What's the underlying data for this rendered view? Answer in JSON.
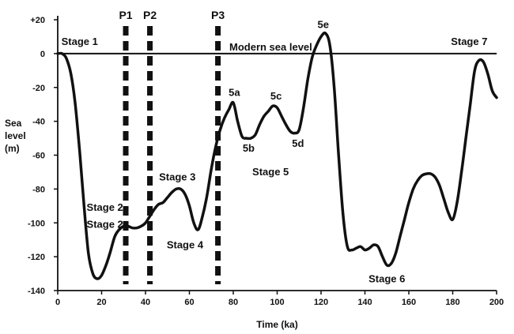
{
  "chart_data": {
    "type": "line",
    "xlabel": "Time (ka)",
    "ylabel_lines": [
      "Sea",
      "level",
      "(m)"
    ],
    "xlim": [
      0,
      200
    ],
    "ylim": [
      -140,
      20
    ],
    "x_ticks": [
      0,
      20,
      40,
      60,
      80,
      100,
      120,
      140,
      160,
      180,
      200
    ],
    "y_ticks": [
      20,
      0,
      -20,
      -40,
      -60,
      -80,
      -100,
      -120,
      -140
    ],
    "y_tick_labels": [
      "+20",
      "0",
      "-20",
      "-40",
      "-60",
      "-80",
      "-100",
      "-120",
      "-140"
    ],
    "grid": false,
    "reference_line": {
      "y": 0,
      "label": "Modern sea level"
    },
    "markers": [
      {
        "label": "P1",
        "x": 31
      },
      {
        "label": "P2",
        "x": 42
      },
      {
        "label": "P3",
        "x": 73
      }
    ],
    "series": [
      {
        "x": [
          0,
          2,
          4,
          6,
          8,
          10,
          12,
          14,
          16,
          18,
          20,
          22,
          24,
          26,
          28,
          30,
          32,
          34,
          36,
          38,
          40,
          42,
          44,
          46,
          48,
          50,
          52,
          54,
          56,
          58,
          60,
          62,
          64,
          66,
          68,
          70,
          72,
          74,
          76,
          78,
          80,
          82,
          84,
          86,
          88,
          90,
          92,
          94,
          96,
          98,
          100,
          102,
          104,
          106,
          108,
          110,
          112,
          114,
          116,
          118,
          120,
          122,
          124,
          126,
          128,
          130,
          132,
          134,
          136,
          138,
          140,
          142,
          144,
          146,
          148,
          150,
          152,
          154,
          156,
          158,
          160,
          162,
          164,
          166,
          168,
          170,
          172,
          174,
          176,
          178,
          180,
          182,
          184,
          186,
          188,
          190,
          192,
          194,
          196,
          198,
          200
        ],
        "values": [
          0,
          0,
          -3,
          -12,
          -30,
          -58,
          -90,
          -118,
          -130,
          -133,
          -131,
          -125,
          -117,
          -108,
          -104,
          -102,
          -102,
          -103,
          -103,
          -102,
          -100,
          -96,
          -92,
          -89,
          -88,
          -85,
          -82,
          -80,
          -80,
          -83,
          -90,
          -100,
          -104,
          -96,
          -84,
          -68,
          -55,
          -45,
          -38,
          -33,
          -29,
          -40,
          -49,
          -50,
          -50,
          -48,
          -42,
          -37,
          -34,
          -31,
          -32,
          -37,
          -42,
          -46,
          -47,
          -45,
          -32,
          -15,
          -2,
          5,
          10,
          12,
          5,
          -20,
          -60,
          -95,
          -114,
          -116,
          -115,
          -114,
          -116,
          -115,
          -113,
          -114,
          -120,
          -125,
          -124,
          -118,
          -108,
          -98,
          -88,
          -80,
          -75,
          -72,
          -71,
          -71,
          -73,
          -78,
          -86,
          -94,
          -98,
          -88,
          -70,
          -50,
          -30,
          -10,
          -4,
          -5,
          -12,
          -22,
          -26
        ]
      }
    ],
    "annotations": [
      {
        "text": "Stage 1",
        "x": 10,
        "y": 5
      },
      {
        "text": "Stage 2",
        "x": 21.5,
        "y": -93
      },
      {
        "text": "Stage 2",
        "x": 21.5,
        "y": -103
      },
      {
        "text": "Stage 3",
        "x": 54.5,
        "y": -75
      },
      {
        "text": "Stage 4",
        "x": 58,
        "y": -115
      },
      {
        "text": "Stage 5",
        "x": 97,
        "y": -72
      },
      {
        "text": "5a",
        "x": 80.5,
        "y": -25
      },
      {
        "text": "5b",
        "x": 87,
        "y": -58
      },
      {
        "text": "5c",
        "x": 99.5,
        "y": -27
      },
      {
        "text": "5d",
        "x": 109.5,
        "y": -55
      },
      {
        "text": "5e",
        "x": 121,
        "y": 15
      },
      {
        "text": "Stage 6",
        "x": 150,
        "y": -135
      },
      {
        "text": "Stage 7",
        "x": 187.5,
        "y": 5
      }
    ]
  }
}
